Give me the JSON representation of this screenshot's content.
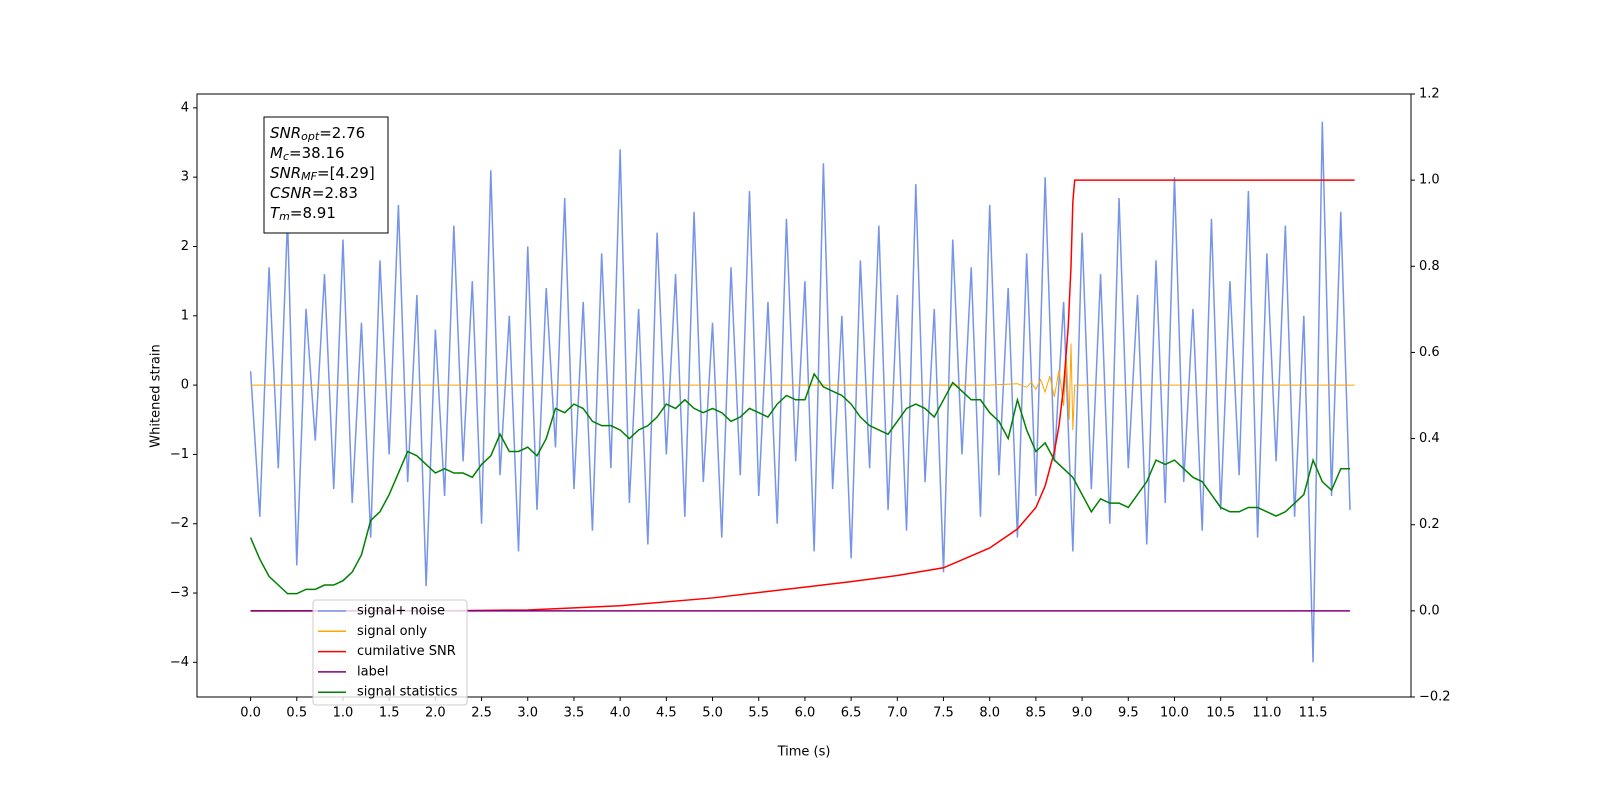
{
  "chart_data": {
    "type": "line",
    "xlabel": "Time (s)",
    "ylabel": "Whitened strain",
    "xlim": [
      -0.58,
      12.56
    ],
    "ylim": [
      -4.5,
      4.2
    ],
    "y2lim": [
      -0.2,
      1.2
    ],
    "xticks": [
      {
        "value": 0,
        "label": "0.0"
      },
      0.5,
      {
        "value": 1,
        "label": "1.0"
      },
      1.5,
      {
        "value": 2,
        "label": "2.0"
      },
      2.5,
      {
        "value": 3,
        "label": "3.0"
      },
      3.5,
      {
        "value": 4,
        "label": "4.0"
      },
      4.5,
      {
        "value": 5,
        "label": "5.0"
      },
      5.5,
      {
        "value": 6,
        "label": "6.0"
      },
      6.5,
      {
        "value": 7,
        "label": "7.0"
      },
      7.5,
      {
        "value": 8,
        "label": "8.0"
      },
      8.5,
      {
        "value": 9,
        "label": "9.0"
      },
      9.5,
      {
        "value": 10,
        "label": "10.0"
      },
      10.5,
      {
        "value": 11,
        "label": "11.0"
      },
      11.5
    ],
    "yticks": [
      {
        "value": -4,
        "label": "−4"
      },
      {
        "value": -3,
        "label": "−3"
      },
      {
        "value": -2,
        "label": "−2"
      },
      {
        "value": -1,
        "label": "−1"
      },
      0,
      1,
      2,
      3,
      4
    ],
    "y2ticks": [
      {
        "value": -0.2,
        "label": "−0.2"
      },
      {
        "value": 0,
        "label": "0.0"
      },
      0.2,
      0.4,
      0.6,
      0.8,
      {
        "value": 1,
        "label": "1.0"
      },
      1.2
    ],
    "x": [
      0.0,
      0.1,
      0.2,
      0.3,
      0.4,
      0.5,
      0.6,
      0.7,
      0.8,
      0.9,
      1.0,
      1.1,
      1.2,
      1.3,
      1.4,
      1.5,
      1.6,
      1.7,
      1.8,
      1.9,
      2.0,
      2.1,
      2.2,
      2.3,
      2.4,
      2.5,
      2.6,
      2.7,
      2.8,
      2.9,
      3.0,
      3.1,
      3.2,
      3.3,
      3.4,
      3.5,
      3.6,
      3.7,
      3.8,
      3.9,
      4.0,
      4.1,
      4.2,
      4.3,
      4.4,
      4.5,
      4.6,
      4.7,
      4.8,
      4.9,
      5.0,
      5.1,
      5.2,
      5.3,
      5.4,
      5.5,
      5.6,
      5.7,
      5.8,
      5.9,
      6.0,
      6.1,
      6.2,
      6.3,
      6.4,
      6.5,
      6.6,
      6.7,
      6.8,
      6.9,
      7.0,
      7.1,
      7.2,
      7.3,
      7.4,
      7.5,
      7.6,
      7.7,
      7.8,
      7.9,
      8.0,
      8.1,
      8.2,
      8.3,
      8.4,
      8.5,
      8.6,
      8.7,
      8.8,
      8.9,
      9.0,
      9.1,
      9.2,
      9.3,
      9.4,
      9.5,
      9.6,
      9.7,
      9.8,
      9.9,
      10.0,
      10.1,
      10.2,
      10.3,
      10.4,
      10.5,
      10.6,
      10.7,
      10.8,
      10.9,
      11.0,
      11.1,
      11.2,
      11.3,
      11.4,
      11.5,
      11.6,
      11.7,
      11.8,
      11.9
    ],
    "series": [
      {
        "name": "signal+ noise",
        "color": "#7795e8",
        "values": [
          0.2,
          -1.9,
          1.7,
          -1.2,
          2.4,
          -2.6,
          1.1,
          -0.8,
          1.6,
          -1.5,
          2.1,
          -1.7,
          0.9,
          -2.2,
          1.8,
          -1.0,
          2.6,
          -1.4,
          1.3,
          -2.9,
          0.8,
          -1.6,
          2.3,
          -1.1,
          1.5,
          -2.0,
          3.1,
          -1.3,
          1.0,
          -2.4,
          2.0,
          -1.8,
          1.4,
          -0.9,
          2.7,
          -1.5,
          1.2,
          -2.1,
          1.9,
          -1.2,
          3.4,
          -1.7,
          1.1,
          -2.3,
          2.2,
          -1.0,
          1.6,
          -1.9,
          2.5,
          -1.4,
          0.9,
          -2.2,
          1.7,
          -1.3,
          2.8,
          -1.6,
          1.2,
          -2.0,
          2.4,
          -1.1,
          1.5,
          -2.4,
          3.2,
          -1.5,
          1.0,
          -2.5,
          1.8,
          -1.2,
          2.3,
          -1.8,
          1.3,
          -2.1,
          2.9,
          -1.4,
          1.1,
          -2.7,
          2.1,
          -1.0,
          1.7,
          -1.9,
          2.6,
          -1.3,
          1.4,
          -2.2,
          1.9,
          -1.6,
          3.0,
          -1.1,
          1.2,
          -2.4,
          2.2,
          -1.5,
          1.6,
          -2.0,
          2.7,
          -1.2,
          1.3,
          -2.3,
          1.8,
          -1.7,
          3.0,
          -1.4,
          1.1,
          -2.1,
          2.4,
          -1.8,
          1.5,
          -1.3,
          2.8,
          -2.2,
          1.9,
          -1.1,
          2.3,
          -1.9,
          1.0,
          -4.0,
          3.8,
          -1.6,
          2.5,
          -1.8
        ]
      },
      {
        "name": "signal only",
        "color": "#ffa500",
        "x": [
          0,
          8.0,
          8.3,
          8.4,
          8.45,
          8.5,
          8.55,
          8.6,
          8.65,
          8.7,
          8.75,
          8.8,
          8.83,
          8.86,
          8.88,
          8.9,
          8.92,
          9.0,
          11.95
        ],
        "values": [
          0,
          0,
          0.02,
          -0.03,
          0.04,
          -0.06,
          0.08,
          -0.1,
          0.13,
          -0.17,
          0.22,
          -0.3,
          0.4,
          -0.5,
          0.6,
          -0.65,
          0,
          0,
          0
        ]
      },
      {
        "name": "cumilative SNR",
        "color": "#ff0000",
        "axis": "y2",
        "x": [
          0,
          2.0,
          3.0,
          4.0,
          5.0,
          6.0,
          6.5,
          7.0,
          7.5,
          8.0,
          8.3,
          8.5,
          8.6,
          8.7,
          8.75,
          8.8,
          8.85,
          8.88,
          8.9,
          8.92,
          11.95
        ],
        "values": [
          0,
          0,
          0.002,
          0.012,
          0.03,
          0.055,
          0.068,
          0.082,
          0.1,
          0.146,
          0.19,
          0.24,
          0.29,
          0.37,
          0.43,
          0.52,
          0.66,
          0.8,
          0.95,
          1.0,
          1.0
        ]
      },
      {
        "name": "label",
        "color": "#800080",
        "axis": "y2",
        "x": [
          0,
          11.9
        ],
        "values": [
          0,
          0
        ]
      },
      {
        "name": "signal statistics",
        "color": "#008000",
        "axis": "y2",
        "values": [
          0.17,
          0.12,
          0.08,
          0.06,
          0.04,
          0.04,
          0.05,
          0.05,
          0.06,
          0.06,
          0.07,
          0.09,
          0.13,
          0.21,
          0.23,
          0.27,
          0.32,
          0.37,
          0.36,
          0.34,
          0.32,
          0.33,
          0.32,
          0.32,
          0.31,
          0.34,
          0.36,
          0.41,
          0.37,
          0.37,
          0.38,
          0.36,
          0.4,
          0.47,
          0.46,
          0.48,
          0.47,
          0.44,
          0.43,
          0.43,
          0.42,
          0.4,
          0.42,
          0.43,
          0.45,
          0.48,
          0.47,
          0.49,
          0.47,
          0.46,
          0.47,
          0.46,
          0.44,
          0.45,
          0.47,
          0.46,
          0.45,
          0.48,
          0.5,
          0.49,
          0.49,
          0.55,
          0.52,
          0.51,
          0.5,
          0.48,
          0.45,
          0.43,
          0.42,
          0.41,
          0.44,
          0.47,
          0.48,
          0.47,
          0.45,
          0.49,
          0.53,
          0.51,
          0.49,
          0.49,
          0.46,
          0.44,
          0.4,
          0.49,
          0.42,
          0.37,
          0.39,
          0.35,
          0.33,
          0.31,
          0.27,
          0.23,
          0.26,
          0.25,
          0.25,
          0.24,
          0.27,
          0.3,
          0.35,
          0.34,
          0.35,
          0.33,
          0.31,
          0.3,
          0.27,
          0.24,
          0.23,
          0.23,
          0.24,
          0.24,
          0.23,
          0.22,
          0.23,
          0.25,
          0.27,
          0.35,
          0.3,
          0.28,
          0.33,
          0.33
        ]
      }
    ],
    "annotation": [
      {
        "main": "SNR",
        "sub": "opt",
        "rest": "=2.76"
      },
      {
        "main": "M",
        "sub": "c",
        "rest": "=38.16"
      },
      {
        "main": "SNR",
        "sub": "MF",
        "rest": "=[4.29]"
      },
      {
        "main": "CSNR",
        "rest": "=2.83"
      },
      {
        "main": "T",
        "sub": "m",
        "rest": "=8.91"
      }
    ]
  }
}
